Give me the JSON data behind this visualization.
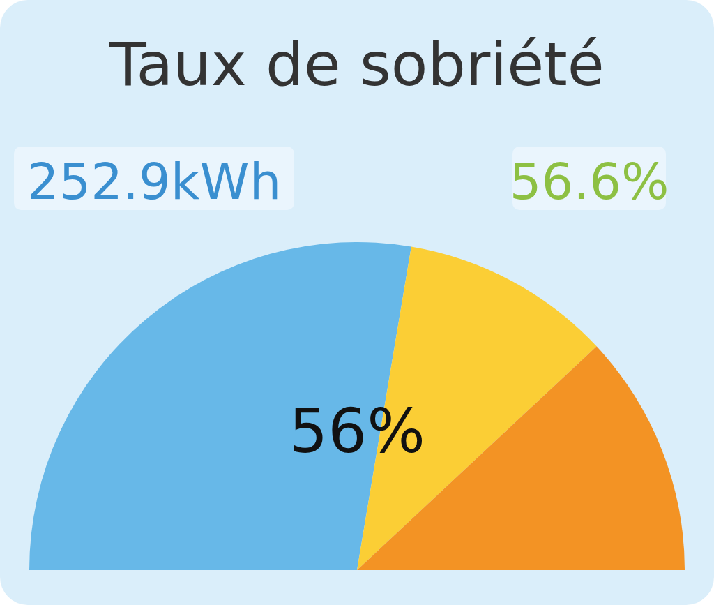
{
  "chart_data": {
    "type": "pie",
    "title": "Taux de sobriété",
    "categories": [
      null,
      null,
      null
    ],
    "values": [
      55.3,
      20.8,
      23.9
    ],
    "colors": [
      "#67b8e8",
      "#fbce35",
      "#f39324"
    ],
    "annotations": [
      "56%",
      "252.9kWh",
      "56.6%"
    ]
  }
}
